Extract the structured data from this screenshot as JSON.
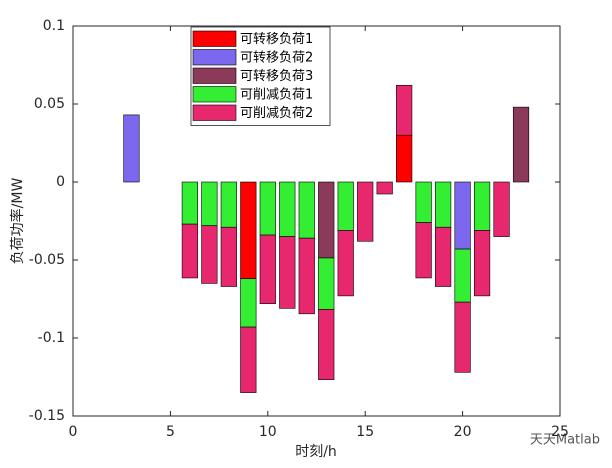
{
  "chart_data": {
    "type": "stacked-bar",
    "xlabel": "时刻/h",
    "ylabel": "负荷功率/MW",
    "x": [
      1,
      2,
      3,
      4,
      5,
      6,
      7,
      8,
      9,
      10,
      11,
      12,
      13,
      14,
      15,
      16,
      17,
      18,
      19,
      20,
      21,
      22,
      23,
      24
    ],
    "series": [
      {
        "name": "可转移负荷1",
        "color": "#ff0000",
        "values": [
          0,
          0,
          0,
          0,
          0,
          0,
          0,
          0,
          -0.062,
          0,
          0,
          0,
          0,
          0,
          0,
          0,
          0.03,
          0,
          0,
          0,
          0,
          0,
          0,
          0
        ]
      },
      {
        "name": "可转移负荷2",
        "color": "#7b68ee",
        "values": [
          0,
          0,
          0.043,
          0,
          0,
          0,
          0,
          0,
          0,
          0,
          0,
          0,
          0,
          0,
          0,
          0,
          0,
          0,
          0,
          -0.043,
          0,
          0,
          0,
          0
        ]
      },
      {
        "name": "可转移负荷3",
        "color": "#8b3a5a",
        "values": [
          0,
          0,
          0,
          0,
          0,
          0,
          0,
          0,
          0,
          0,
          0,
          0,
          -0.0487,
          0,
          0,
          0,
          0,
          0,
          0,
          0,
          0,
          0,
          0.048,
          0
        ]
      },
      {
        "name": "可削减负荷1",
        "color": "#33ee33",
        "values": [
          0,
          0,
          0,
          0,
          0,
          -0.027,
          -0.028,
          -0.029,
          -0.031,
          -0.034,
          -0.035,
          -0.036,
          -0.033,
          -0.031,
          0,
          0,
          0,
          -0.026,
          -0.029,
          -0.034,
          -0.031,
          0,
          0,
          0
        ]
      },
      {
        "name": "可削减负荷2",
        "color": "#e8286e",
        "values": [
          0,
          0,
          0,
          0,
          0,
          -0.0345,
          -0.037,
          -0.038,
          -0.042,
          -0.044,
          -0.046,
          -0.0485,
          -0.045,
          -0.042,
          -0.038,
          -0.0077,
          0.032,
          -0.0355,
          -0.038,
          -0.045,
          -0.042,
          -0.035,
          0,
          0
        ]
      }
    ],
    "xlim": [
      0,
      25
    ],
    "xticks": [
      0,
      5,
      10,
      15,
      20,
      25
    ],
    "ylim": [
      -0.15,
      0.1
    ],
    "yticks": [
      -0.15,
      -0.1,
      -0.05,
      0,
      0.05,
      0.1
    ],
    "legend": "upper-center",
    "watermark": "天天Matlab"
  }
}
